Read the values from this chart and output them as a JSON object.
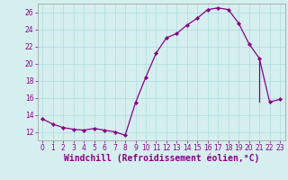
{
  "x": [
    0,
    1,
    2,
    3,
    4,
    5,
    6,
    7,
    8,
    9,
    10,
    11,
    12,
    13,
    14,
    15,
    16,
    17,
    18,
    19,
    20,
    21,
    22,
    23
  ],
  "y": [
    13.5,
    12.9,
    12.5,
    12.3,
    12.2,
    12.4,
    12.2,
    12.0,
    11.6,
    15.4,
    18.4,
    21.2,
    23.0,
    23.5,
    24.5,
    25.3,
    26.3,
    26.5,
    26.3,
    24.7,
    22.3,
    20.6,
    15.5,
    15.8
  ],
  "vertical_drop": {
    "x": 21,
    "y_top": 20.6,
    "y_bot": 15.5
  },
  "line_color": "#880088",
  "marker_color": "#880088",
  "bg_color": "#d5eeee",
  "grid_color": "#aadddd",
  "axis_color": "#999999",
  "xlabel": "Windchill (Refroidissement éolien,°C)",
  "xlabel_color": "#880088",
  "xlabel_fontsize": 7,
  "ylim": [
    11.0,
    27.0
  ],
  "yticks": [
    12,
    14,
    16,
    18,
    20,
    22,
    24,
    26
  ],
  "xticks": [
    0,
    1,
    2,
    3,
    4,
    5,
    6,
    7,
    8,
    9,
    10,
    11,
    12,
    13,
    14,
    15,
    16,
    17,
    18,
    19,
    20,
    21,
    22,
    23
  ],
  "tick_fontsize": 5.5,
  "tick_color": "#880088",
  "linewidth": 0.9,
  "markersize": 2.2,
  "marker": "D"
}
